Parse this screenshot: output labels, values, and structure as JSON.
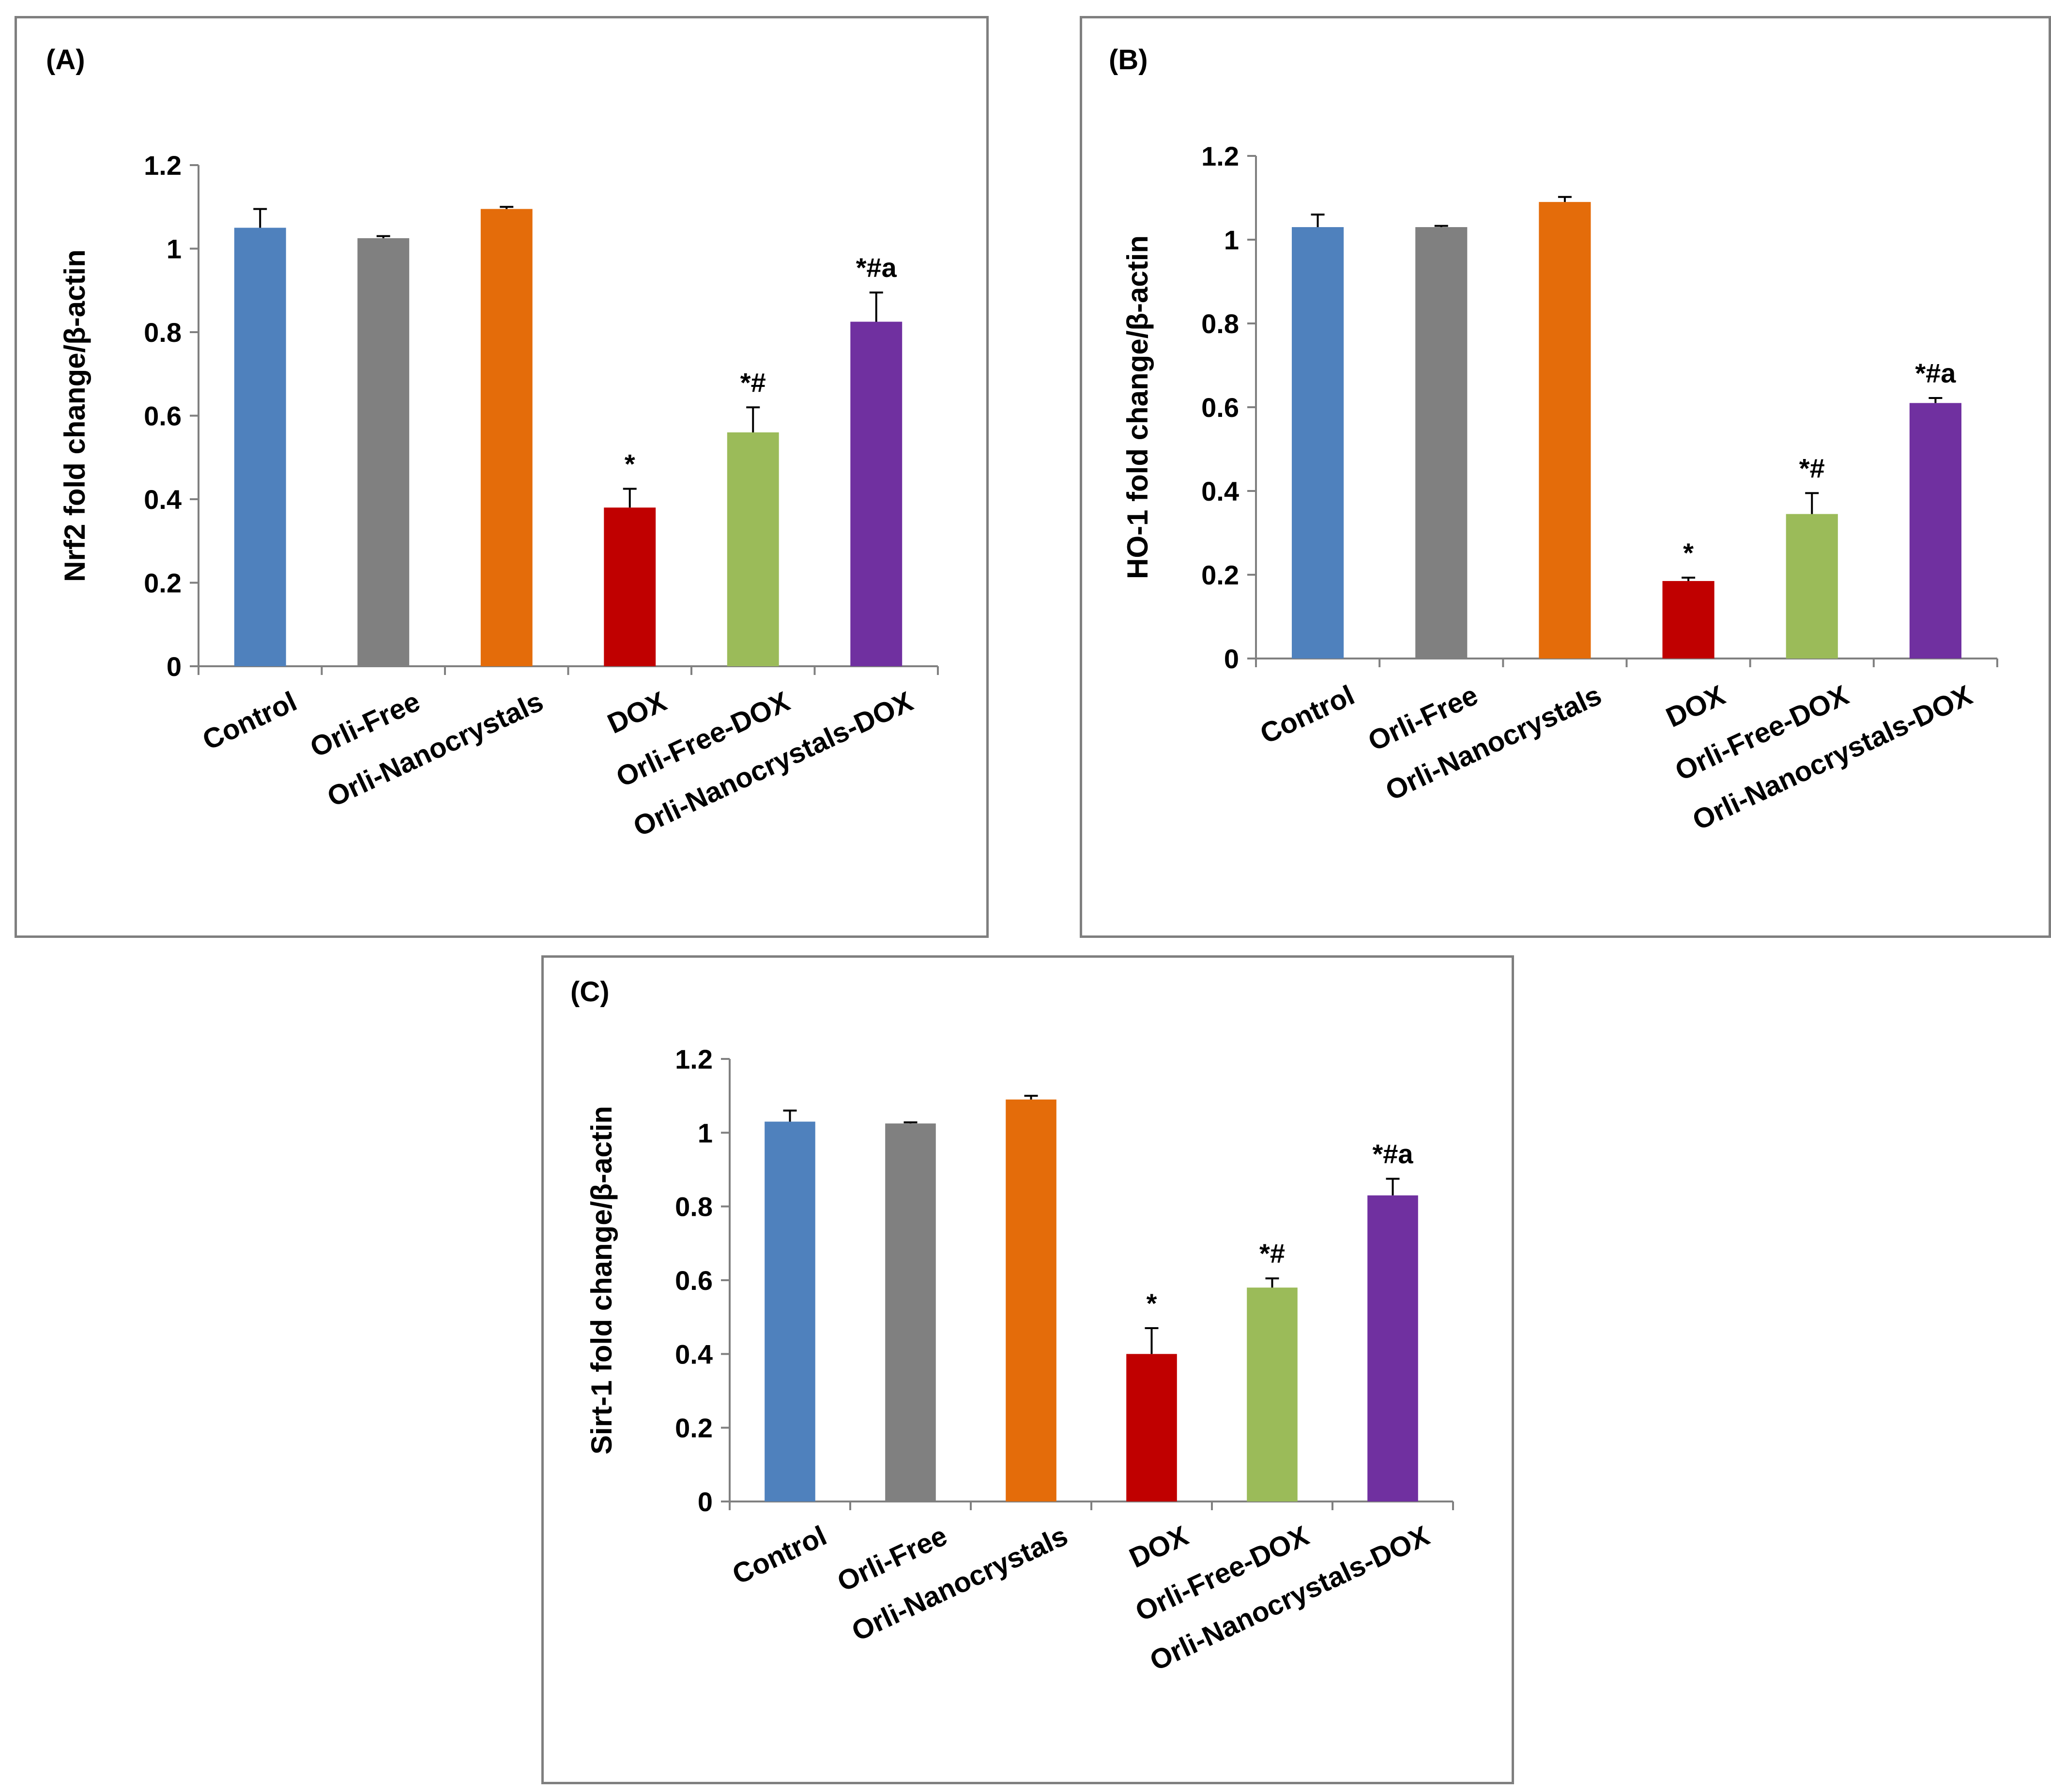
{
  "chart_data": [
    {
      "type": "bar",
      "panel_label": "(A)",
      "categories": [
        "Control",
        "Orli-Free",
        "Orli-Nanocrystals",
        "DOX",
        "Orli-Free-DOX",
        "Orli-Nanocrystals-DOX"
      ],
      "values": [
        1.05,
        1.025,
        1.095,
        0.38,
        0.56,
        0.825
      ],
      "errors": [
        0.045,
        0.005,
        0.005,
        0.045,
        0.06,
        0.07
      ],
      "annotations": [
        "",
        "",
        "",
        "*",
        "*#",
        "*#a"
      ],
      "colors": [
        "#4F81BD",
        "#808080",
        "#E46C0A",
        "#C00000",
        "#9BBB59",
        "#7030A0"
      ],
      "ylabel": "Nrf2 fold change/β-actin",
      "ylim": [
        0,
        1.2
      ],
      "yticks": [
        "0",
        "0.2",
        "0.4",
        "0.6",
        "0.8",
        "1",
        "1.2"
      ],
      "grid": false
    },
    {
      "type": "bar",
      "panel_label": "(B)",
      "categories": [
        "Control",
        "Orli-Free",
        "Orli-Nanocrystals",
        "DOX",
        "Orli-Free-DOX",
        "Orli-Nanocrystals-DOX"
      ],
      "values": [
        1.03,
        1.03,
        1.09,
        0.185,
        0.345,
        0.61
      ],
      "errors": [
        0.03,
        0.003,
        0.012,
        0.008,
        0.05,
        0.012
      ],
      "annotations": [
        "",
        "",
        "",
        "*",
        "*#",
        "*#a"
      ],
      "colors": [
        "#4F81BD",
        "#808080",
        "#E46C0A",
        "#C00000",
        "#9BBB59",
        "#7030A0"
      ],
      "ylabel": "HO-1 fold change/β-actin",
      "ylim": [
        0,
        1.2
      ],
      "yticks": [
        "0",
        "0.2",
        "0.4",
        "0.6",
        "0.8",
        "1",
        "1.2"
      ],
      "grid": false
    },
    {
      "type": "bar",
      "panel_label": "(C)",
      "categories": [
        "Control",
        "Orli-Free",
        "Orli-Nanocrystals",
        "DOX",
        "Orli-Free-DOX",
        "Orli-Nanocrystals-DOX"
      ],
      "values": [
        1.03,
        1.025,
        1.09,
        0.4,
        0.58,
        0.83
      ],
      "errors": [
        0.03,
        0.003,
        0.01,
        0.07,
        0.025,
        0.045
      ],
      "annotations": [
        "",
        "",
        "",
        "*",
        "*#",
        "*#a"
      ],
      "colors": [
        "#4F81BD",
        "#808080",
        "#E46C0A",
        "#C00000",
        "#9BBB59",
        "#7030A0"
      ],
      "ylabel": "Sirt-1 fold change/β-actin",
      "ylim": [
        0,
        1.2
      ],
      "yticks": [
        "0",
        "0.2",
        "0.4",
        "0.6",
        "0.8",
        "1",
        "1.2"
      ],
      "grid": false
    }
  ]
}
